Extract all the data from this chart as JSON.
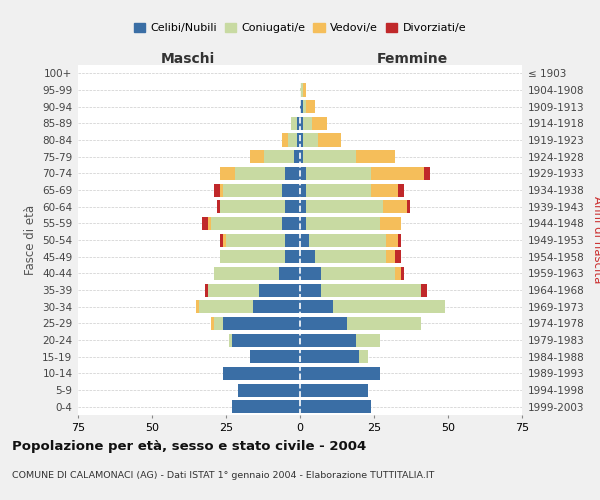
{
  "age_groups": [
    "0-4",
    "5-9",
    "10-14",
    "15-19",
    "20-24",
    "25-29",
    "30-34",
    "35-39",
    "40-44",
    "45-49",
    "50-54",
    "55-59",
    "60-64",
    "65-69",
    "70-74",
    "75-79",
    "80-84",
    "85-89",
    "90-94",
    "95-99",
    "100+"
  ],
  "birth_years": [
    "1999-2003",
    "1994-1998",
    "1989-1993",
    "1984-1988",
    "1979-1983",
    "1974-1978",
    "1969-1973",
    "1964-1968",
    "1959-1963",
    "1954-1958",
    "1949-1953",
    "1944-1948",
    "1939-1943",
    "1934-1938",
    "1929-1933",
    "1924-1928",
    "1919-1923",
    "1914-1918",
    "1909-1913",
    "1904-1908",
    "≤ 1903"
  ],
  "maschi": {
    "celibi": [
      23,
      21,
      26,
      17,
      23,
      26,
      16,
      14,
      7,
      5,
      5,
      6,
      5,
      6,
      5,
      2,
      1,
      1,
      0,
      0,
      0
    ],
    "coniugati": [
      0,
      0,
      0,
      0,
      1,
      3,
      18,
      17,
      22,
      22,
      20,
      24,
      22,
      20,
      17,
      10,
      3,
      2,
      0,
      0,
      0
    ],
    "vedovi": [
      0,
      0,
      0,
      0,
      0,
      1,
      1,
      0,
      0,
      0,
      1,
      1,
      0,
      1,
      5,
      5,
      2,
      0,
      0,
      0,
      0
    ],
    "divorziati": [
      0,
      0,
      0,
      0,
      0,
      0,
      0,
      1,
      0,
      0,
      1,
      2,
      1,
      2,
      0,
      0,
      0,
      0,
      0,
      0,
      0
    ]
  },
  "femmine": {
    "celibi": [
      24,
      23,
      27,
      20,
      19,
      16,
      11,
      7,
      7,
      5,
      3,
      2,
      2,
      2,
      2,
      1,
      1,
      1,
      1,
      0,
      0
    ],
    "coniugati": [
      0,
      0,
      0,
      3,
      8,
      25,
      38,
      34,
      25,
      24,
      26,
      25,
      26,
      22,
      22,
      18,
      5,
      3,
      1,
      1,
      0
    ],
    "vedovi": [
      0,
      0,
      0,
      0,
      0,
      0,
      0,
      0,
      2,
      3,
      4,
      7,
      8,
      9,
      18,
      13,
      8,
      5,
      3,
      1,
      0
    ],
    "divorziati": [
      0,
      0,
      0,
      0,
      0,
      0,
      0,
      2,
      1,
      2,
      1,
      0,
      1,
      2,
      2,
      0,
      0,
      0,
      0,
      0,
      0
    ]
  },
  "colors": {
    "celibi": "#3a6ea5",
    "coniugati": "#c8daa2",
    "vedovi": "#f5be5a",
    "divorziati": "#c0282a"
  },
  "legend_labels": [
    "Celibi/Nubili",
    "Coniugati/e",
    "Vedovi/e",
    "Divorziati/e"
  ],
  "title": "Popolazione per età, sesso e stato civile - 2004",
  "subtitle": "COMUNE DI CALAMONACI (AG) - Dati ISTAT 1° gennaio 2004 - Elaborazione TUTTITALIA.IT",
  "xlabel_left": "Maschi",
  "xlabel_right": "Femmine",
  "ylabel_left": "Fasce di età",
  "ylabel_right": "Anni di nascita",
  "xlim": 75,
  "bg_color": "#f0f0f0",
  "plot_bg": "#ffffff"
}
